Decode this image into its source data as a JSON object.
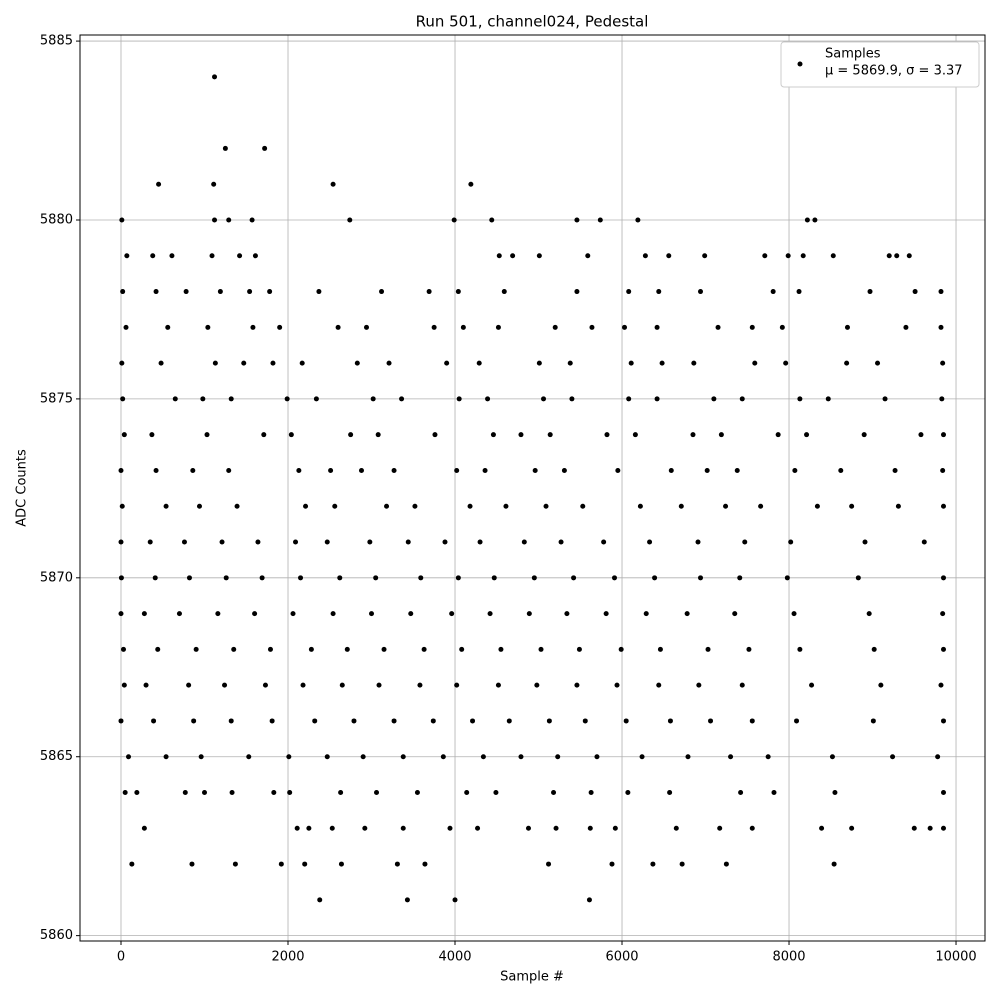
{
  "chart_data": {
    "type": "scatter",
    "title": "Run 501, channel024, Pedestal",
    "xlabel": "Sample #",
    "ylabel": "ADC Counts",
    "legend_note": "μ = 5869.9, σ = 3.37",
    "legend": "upper right",
    "grid": true,
    "xlim": [
      -491,
      10347
    ],
    "ylim": [
      5859.85,
      5885.17
    ],
    "xticks": [
      0,
      2000,
      4000,
      6000,
      8000,
      10000
    ],
    "yticks": [
      5860,
      5865,
      5870,
      5875,
      5880,
      5885
    ],
    "series": [
      {
        "name": "Samples",
        "color": "#000000",
        "x": [
          60,
          560,
          1040,
          1580,
          1900,
          2600,
          2940,
          3750,
          4100,
          4520,
          5200,
          5640,
          6030,
          6420,
          7150,
          7560,
          7920,
          8700,
          9400,
          9820,
          10,
          480,
          1130,
          1470,
          1820,
          2170,
          2830,
          3210,
          3900,
          4290,
          5010,
          5380,
          6110,
          6480,
          6860,
          7590,
          7960,
          8690,
          9060,
          9840,
          20,
          650,
          980,
          1320,
          1990,
          2340,
          3020,
          3360,
          4050,
          4390,
          5060,
          5400,
          6080,
          6420,
          7100,
          7440,
          8130,
          8470,
          9150,
          9830,
          40,
          370,
          1030,
          1710,
          2040,
          2750,
          3080,
          3760,
          4460,
          4790,
          5140,
          5820,
          6160,
          6850,
          7190,
          7870,
          8210,
          8900,
          9580,
          9850,
          0,
          420,
          860,
          1290,
          2130,
          2510,
          2880,
          3270,
          4020,
          4360,
          4960,
          5310,
          5950,
          6590,
          7020,
          7380,
          8070,
          8620,
          9270,
          9840,
          15,
          540,
          940,
          1390,
          2210,
          2560,
          3180,
          3520,
          4180,
          4610,
          5090,
          5530,
          6220,
          6710,
          7240,
          7660,
          8340,
          8750,
          9310,
          9850,
          0,
          350,
          760,
          1210,
          1640,
          2090,
          2470,
          2980,
          3440,
          3880,
          4300,
          4830,
          5270,
          5780,
          6330,
          6910,
          7470,
          8020,
          8910,
          9620,
          5,
          410,
          820,
          1260,
          1690,
          2150,
          2620,
          3050,
          3590,
          4040,
          4470,
          4950,
          5420,
          5910,
          6390,
          6940,
          7410,
          7980,
          8830,
          9850,
          0,
          280,
          700,
          1160,
          1600,
          2060,
          2540,
          3000,
          3470,
          3960,
          4420,
          4890,
          5340,
          5810,
          6290,
          6780,
          7350,
          8060,
          8960,
          9840,
          30,
          440,
          900,
          1350,
          1790,
          2280,
          2710,
          3150,
          3630,
          4080,
          4550,
          5030,
          5490,
          5990,
          6460,
          7030,
          7520,
          8130,
          9020,
          9850,
          40,
          300,
          810,
          1240,
          1730,
          2180,
          2650,
          3090,
          3580,
          4020,
          4520,
          4980,
          5460,
          5940,
          6440,
          6920,
          7440,
          8270,
          9100,
          9820,
          0,
          390,
          870,
          1320,
          1810,
          2320,
          2790,
          3270,
          3740,
          4210,
          4650,
          5130,
          5560,
          6050,
          6580,
          7060,
          7560,
          8090,
          9010,
          9850,
          90,
          540,
          960,
          1530,
          2010,
          2470,
          2900,
          3380,
          3860,
          4340,
          4790,
          5230,
          5700,
          6240,
          6790,
          7300,
          7750,
          8520,
          9240,
          9780,
          50,
          190,
          770,
          1000,
          1330,
          1830,
          2020,
          2630,
          3060,
          3550,
          4140,
          4490,
          5180,
          5630,
          6070,
          6570,
          7420,
          7820,
          8550,
          9850,
          20,
          420,
          780,
          1190,
          1540,
          1780,
          2370,
          3120,
          3690,
          4040,
          4590,
          5460,
          6080,
          6440,
          6940,
          7810,
          8120,
          8970,
          9510,
          9820,
          70,
          380,
          610,
          1090,
          1420,
          1610,
          4530,
          4690,
          5010,
          5590,
          6280,
          6560,
          6990,
          7710,
          7990,
          8170,
          8530,
          9200,
          9290,
          9440,
          1120,
          1250,
          1720,
          450,
          1110,
          2540,
          4190,
          10,
          1120,
          1290,
          1570,
          2740,
          3990,
          4440,
          5460,
          5740,
          6190,
          8220,
          8310,
          280,
          2110,
          2250,
          2530,
          2920,
          3380,
          3940,
          4270,
          4880,
          5210,
          5620,
          5920,
          6650,
          7170,
          7560,
          8390,
          8750,
          9500,
          9690,
          9850,
          130,
          850,
          1370,
          1920,
          2200,
          2640,
          3310,
          3640,
          5120,
          5880,
          6370,
          6720,
          7250,
          8540,
          2380,
          3430,
          4000,
          5610
        ],
        "values": [
          5877,
          5877,
          5877,
          5877,
          5877,
          5877,
          5877,
          5877,
          5877,
          5877,
          5877,
          5877,
          5877,
          5877,
          5877,
          5877,
          5877,
          5877,
          5877,
          5877,
          5876,
          5876,
          5876,
          5876,
          5876,
          5876,
          5876,
          5876,
          5876,
          5876,
          5876,
          5876,
          5876,
          5876,
          5876,
          5876,
          5876,
          5876,
          5876,
          5876,
          5875,
          5875,
          5875,
          5875,
          5875,
          5875,
          5875,
          5875,
          5875,
          5875,
          5875,
          5875,
          5875,
          5875,
          5875,
          5875,
          5875,
          5875,
          5875,
          5875,
          5874,
          5874,
          5874,
          5874,
          5874,
          5874,
          5874,
          5874,
          5874,
          5874,
          5874,
          5874,
          5874,
          5874,
          5874,
          5874,
          5874,
          5874,
          5874,
          5874,
          5873,
          5873,
          5873,
          5873,
          5873,
          5873,
          5873,
          5873,
          5873,
          5873,
          5873,
          5873,
          5873,
          5873,
          5873,
          5873,
          5873,
          5873,
          5873,
          5873,
          5872,
          5872,
          5872,
          5872,
          5872,
          5872,
          5872,
          5872,
          5872,
          5872,
          5872,
          5872,
          5872,
          5872,
          5872,
          5872,
          5872,
          5872,
          5872,
          5872,
          5871,
          5871,
          5871,
          5871,
          5871,
          5871,
          5871,
          5871,
          5871,
          5871,
          5871,
          5871,
          5871,
          5871,
          5871,
          5871,
          5871,
          5871,
          5871,
          5871,
          5870,
          5870,
          5870,
          5870,
          5870,
          5870,
          5870,
          5870,
          5870,
          5870,
          5870,
          5870,
          5870,
          5870,
          5870,
          5870,
          5870,
          5870,
          5870,
          5870,
          5869,
          5869,
          5869,
          5869,
          5869,
          5869,
          5869,
          5869,
          5869,
          5869,
          5869,
          5869,
          5869,
          5869,
          5869,
          5869,
          5869,
          5869,
          5869,
          5869,
          5868,
          5868,
          5868,
          5868,
          5868,
          5868,
          5868,
          5868,
          5868,
          5868,
          5868,
          5868,
          5868,
          5868,
          5868,
          5868,
          5868,
          5868,
          5868,
          5868,
          5867,
          5867,
          5867,
          5867,
          5867,
          5867,
          5867,
          5867,
          5867,
          5867,
          5867,
          5867,
          5867,
          5867,
          5867,
          5867,
          5867,
          5867,
          5867,
          5867,
          5866,
          5866,
          5866,
          5866,
          5866,
          5866,
          5866,
          5866,
          5866,
          5866,
          5866,
          5866,
          5866,
          5866,
          5866,
          5866,
          5866,
          5866,
          5866,
          5866,
          5865,
          5865,
          5865,
          5865,
          5865,
          5865,
          5865,
          5865,
          5865,
          5865,
          5865,
          5865,
          5865,
          5865,
          5865,
          5865,
          5865,
          5865,
          5865,
          5865,
          5864,
          5864,
          5864,
          5864,
          5864,
          5864,
          5864,
          5864,
          5864,
          5864,
          5864,
          5864,
          5864,
          5864,
          5864,
          5864,
          5864,
          5864,
          5864,
          5864,
          5878,
          5878,
          5878,
          5878,
          5878,
          5878,
          5878,
          5878,
          5878,
          5878,
          5878,
          5878,
          5878,
          5878,
          5878,
          5878,
          5878,
          5878,
          5878,
          5878,
          5879,
          5879,
          5879,
          5879,
          5879,
          5879,
          5879,
          5879,
          5879,
          5879,
          5879,
          5879,
          5879,
          5879,
          5879,
          5879,
          5879,
          5879,
          5879,
          5879,
          5884,
          5882,
          5882,
          5881,
          5881,
          5881,
          5881,
          5880,
          5880,
          5880,
          5880,
          5880,
          5880,
          5880,
          5880,
          5880,
          5880,
          5880,
          5880,
          5863,
          5863,
          5863,
          5863,
          5863,
          5863,
          5863,
          5863,
          5863,
          5863,
          5863,
          5863,
          5863,
          5863,
          5863,
          5863,
          5863,
          5863,
          5863,
          5863,
          5862,
          5862,
          5862,
          5862,
          5862,
          5862,
          5862,
          5862,
          5862,
          5862,
          5862,
          5862,
          5862,
          5862,
          5861,
          5861,
          5861,
          5861
        ]
      }
    ]
  }
}
